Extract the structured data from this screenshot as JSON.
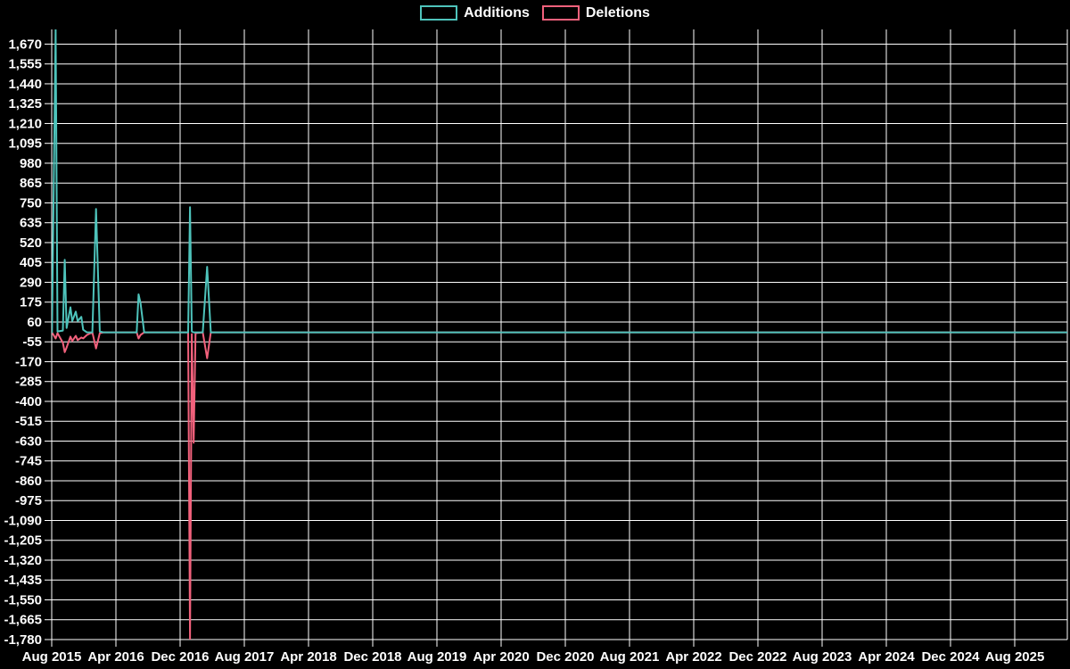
{
  "legend": {
    "additions_label": "Additions",
    "deletions_label": "Deletions"
  },
  "colors": {
    "background": "#000000",
    "grid": "#ffffff",
    "tick_text": "#ffffff",
    "additions": "#4ec3bb",
    "deletions": "#f2617c"
  },
  "chart_data": {
    "type": "line",
    "title": "",
    "xlabel": "",
    "ylabel": "",
    "legend_position": "top-center",
    "grid": true,
    "x_start_month": "2015-08",
    "ylim": [
      -1780,
      1755
    ],
    "yticks": [
      1670,
      1555,
      1440,
      1325,
      1210,
      1095,
      980,
      865,
      750,
      635,
      520,
      405,
      290,
      175,
      60,
      -55,
      -170,
      -285,
      -400,
      -515,
      -630,
      -745,
      -860,
      -975,
      -1090,
      -1205,
      -1320,
      -1435,
      -1550,
      -1665,
      -1780
    ],
    "xtick_labels": [
      "Aug 2015",
      "Apr 2016",
      "Dec 2016",
      "Aug 2017",
      "Apr 2018",
      "Dec 2018",
      "Aug 2019",
      "Apr 2020",
      "Dec 2020",
      "Aug 2021",
      "Apr 2022",
      "Dec 2022",
      "Aug 2023",
      "Apr 2024",
      "Dec 2024",
      "Aug 2025"
    ],
    "xtick_interval_months": 8,
    "series": [
      {
        "name": "Additions",
        "color": "#4ec3bb"
      },
      {
        "name": "Deletions",
        "color": "#f2617c"
      }
    ],
    "points": [
      [
        "2015-08-02",
        0,
        0
      ],
      [
        "2015-08-16",
        1760,
        -36
      ],
      [
        "2015-08-23",
        5,
        -5
      ],
      [
        "2015-09-13",
        10,
        -60
      ],
      [
        "2015-09-20",
        420,
        -115
      ],
      [
        "2015-09-27",
        25,
        -88
      ],
      [
        "2015-10-11",
        145,
        -25
      ],
      [
        "2015-10-18",
        65,
        -50
      ],
      [
        "2015-11-01",
        120,
        -20
      ],
      [
        "2015-11-08",
        65,
        -45
      ],
      [
        "2015-11-22",
        90,
        -30
      ],
      [
        "2015-11-29",
        15,
        -35
      ],
      [
        "2015-12-13",
        0,
        -15
      ],
      [
        "2016-01-03",
        0,
        0
      ],
      [
        "2016-01-17",
        715,
        -93
      ],
      [
        "2016-01-31",
        5,
        -5
      ],
      [
        "2016-02-14",
        0,
        0
      ],
      [
        "2016-06-19",
        0,
        0
      ],
      [
        "2016-06-26",
        220,
        -36
      ],
      [
        "2016-07-03",
        170,
        -15
      ],
      [
        "2016-07-17",
        0,
        0
      ],
      [
        "2017-01-01",
        0,
        0
      ],
      [
        "2017-01-08",
        725,
        -1780
      ],
      [
        "2017-01-15",
        5,
        -10
      ],
      [
        "2017-01-22",
        0,
        -640
      ],
      [
        "2017-01-29",
        0,
        -5
      ],
      [
        "2017-02-26",
        0,
        0
      ],
      [
        "2017-03-12",
        380,
        -150
      ],
      [
        "2017-03-26",
        0,
        0
      ],
      [
        "2026-02-19",
        0,
        0
      ]
    ]
  }
}
